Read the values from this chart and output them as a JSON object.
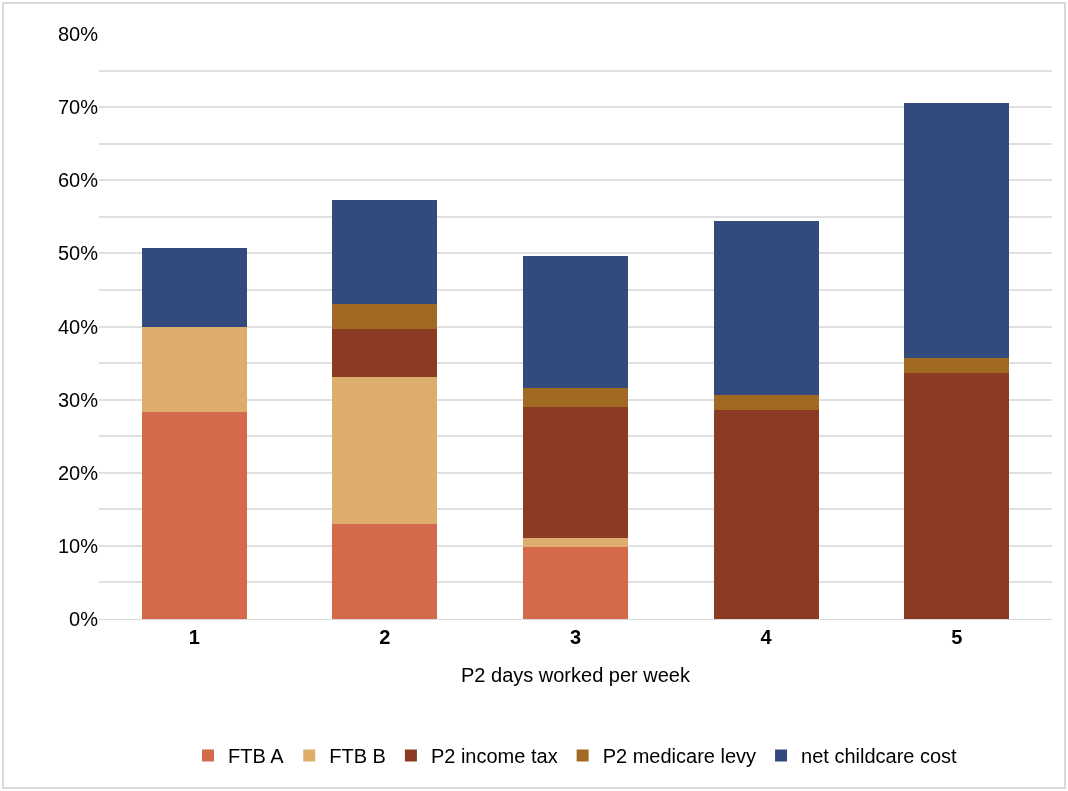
{
  "chart_data": {
    "type": "bar",
    "stacked": true,
    "xlabel": "P2 days worked per week",
    "categories": [
      "1",
      "2",
      "3",
      "4",
      "5"
    ],
    "series": [
      {
        "name": "FTB A",
        "color": "#d4694c",
        "values": [
          28.3,
          13.0,
          9.8,
          0,
          0
        ]
      },
      {
        "name": "FTB B",
        "color": "#dcad6b",
        "values": [
          11.7,
          20.1,
          1.3,
          0,
          0
        ]
      },
      {
        "name": "P2 income tax",
        "color": "#8b3a24",
        "values": [
          0,
          6.6,
          17.9,
          28.6,
          33.7
        ]
      },
      {
        "name": "P2 medicare levy",
        "color": "#a06a22",
        "values": [
          0,
          3.4,
          2.6,
          2.0,
          2.0
        ]
      },
      {
        "name": "net childcare cost",
        "color": "#324b7c",
        "values": [
          10.7,
          14.2,
          18.0,
          23.8,
          34.9
        ]
      }
    ],
    "ylim": [
      0,
      80
    ],
    "yticks": [
      {
        "value": 0,
        "label": "0%"
      },
      {
        "value": 5,
        "label": null
      },
      {
        "value": 10,
        "label": "10%"
      },
      {
        "value": 15,
        "label": null
      },
      {
        "value": 20,
        "label": "20%"
      },
      {
        "value": 25,
        "label": null
      },
      {
        "value": 30,
        "label": "30%"
      },
      {
        "value": 35,
        "label": null
      },
      {
        "value": 40,
        "label": "40%"
      },
      {
        "value": 45,
        "label": null
      },
      {
        "value": 50,
        "label": "50%"
      },
      {
        "value": 55,
        "label": null
      },
      {
        "value": 60,
        "label": "60%"
      },
      {
        "value": 65,
        "label": null
      },
      {
        "value": 70,
        "label": "70%"
      },
      {
        "value": 75,
        "label": null
      },
      {
        "value": 80,
        "label": "80%"
      }
    ],
    "grid": "y",
    "legend": "bottom"
  }
}
